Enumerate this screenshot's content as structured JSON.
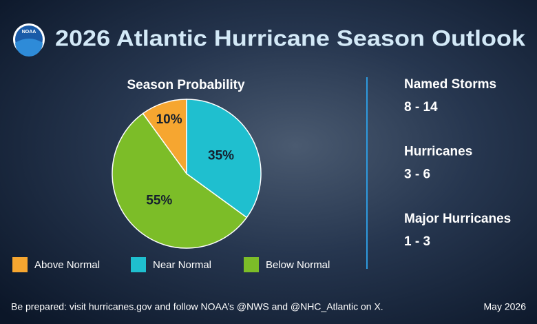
{
  "logo": "NOAA",
  "chart_data": {
    "type": "pie",
    "title": "2026 Atlantic Hurricane Season Outlook",
    "subtitle": "Season Probability",
    "categories": [
      "Above Normal",
      "Near Normal",
      "Below Normal"
    ],
    "values": [
      10,
      35,
      55
    ],
    "value_labels": [
      "10%",
      "35%",
      "55%"
    ],
    "colors": [
      "#f6a630",
      "#1fbfcf",
      "#7cbd28"
    ]
  },
  "stats": [
    {
      "label": "Named Storms",
      "value": "8 - 14"
    },
    {
      "label": "Hurricanes",
      "value": "3 - 6"
    },
    {
      "label": "Major Hurricanes",
      "value": "1 - 3"
    }
  ],
  "footer": "Be prepared: visit hurricanes.gov and follow NOAA’s @NWS and @NHC_Atlantic on X.",
  "date": "May 2026"
}
